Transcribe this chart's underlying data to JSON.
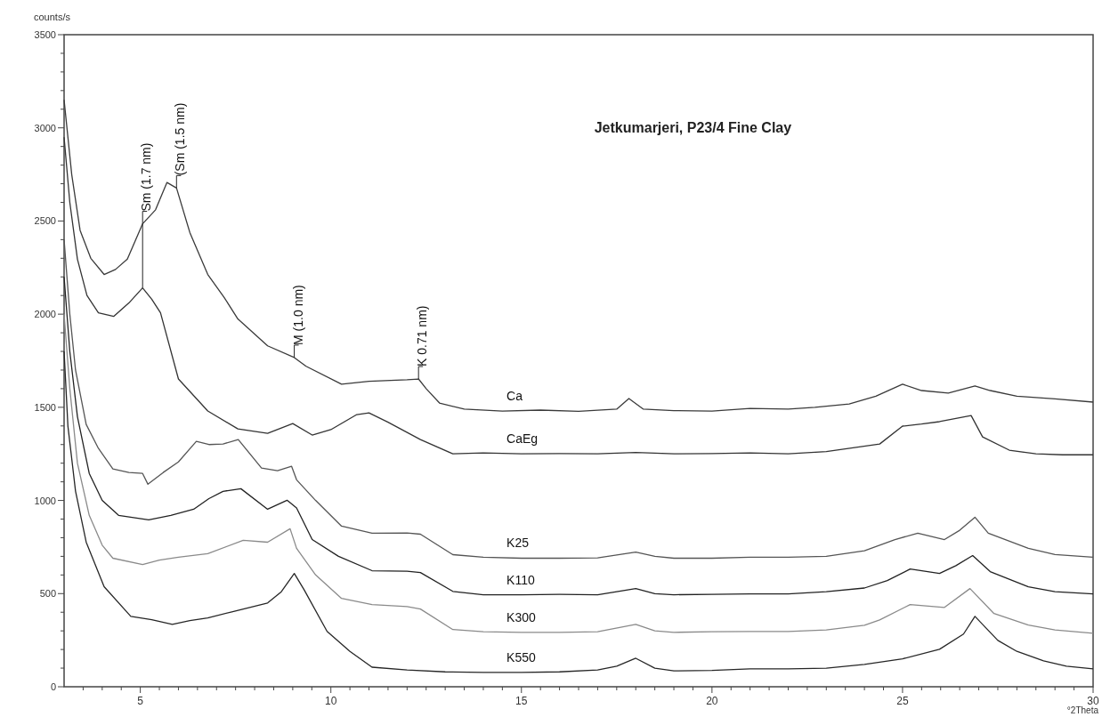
{
  "chart_data": {
    "type": "line",
    "title": "Jetkumarjeri, P23/4 Fine Clay",
    "xlabel": "°2Theta",
    "ylabel": "counts/s",
    "xlim": [
      3,
      30
    ],
    "ylim": [
      0,
      3500
    ],
    "xticks": [
      {
        "value": 3.5,
        "label": null
      },
      {
        "value": 4,
        "label": null
      },
      {
        "value": 4.5,
        "label": null
      },
      5,
      {
        "value": 5.5,
        "label": null
      },
      {
        "value": 6,
        "label": null
      },
      {
        "value": 6.5,
        "label": null
      },
      {
        "value": 7,
        "label": null
      },
      {
        "value": 7.5,
        "label": null
      },
      {
        "value": 8,
        "label": null
      },
      {
        "value": 8.5,
        "label": null
      },
      {
        "value": 9,
        "label": null
      },
      {
        "value": 9.5,
        "label": null
      },
      10,
      {
        "value": 10.5,
        "label": null
      },
      {
        "value": 11,
        "label": null
      },
      {
        "value": 11.5,
        "label": null
      },
      {
        "value": 12,
        "label": null
      },
      {
        "value": 12.5,
        "label": null
      },
      {
        "value": 13,
        "label": null
      },
      {
        "value": 13.5,
        "label": null
      },
      {
        "value": 14,
        "label": null
      },
      {
        "value": 14.5,
        "label": null
      },
      15,
      {
        "value": 15.5,
        "label": null
      },
      {
        "value": 16,
        "label": null
      },
      {
        "value": 16.5,
        "label": null
      },
      {
        "value": 17,
        "label": null
      },
      {
        "value": 17.5,
        "label": null
      },
      {
        "value": 18,
        "label": null
      },
      {
        "value": 18.5,
        "label": null
      },
      {
        "value": 19,
        "label": null
      },
      {
        "value": 19.5,
        "label": null
      },
      20,
      {
        "value": 20.5,
        "label": null
      },
      {
        "value": 21,
        "label": null
      },
      {
        "value": 21.5,
        "label": null
      },
      {
        "value": 22,
        "label": null
      },
      {
        "value": 22.5,
        "label": null
      },
      {
        "value": 23,
        "label": null
      },
      {
        "value": 23.5,
        "label": null
      },
      {
        "value": 24,
        "label": null
      },
      {
        "value": 24.5,
        "label": null
      },
      25,
      {
        "value": 25.5,
        "label": null
      },
      {
        "value": 26,
        "label": null
      },
      {
        "value": 26.5,
        "label": null
      },
      {
        "value": 27,
        "label": null
      },
      {
        "value": 27.5,
        "label": null
      },
      {
        "value": 28,
        "label": null
      },
      {
        "value": 28.5,
        "label": null
      },
      {
        "value": 29,
        "label": null
      },
      {
        "value": 29.5,
        "label": null
      },
      30
    ],
    "yticks": [
      0,
      {
        "value": 100,
        "label": null
      },
      {
        "value": 200,
        "label": null
      },
      {
        "value": 300,
        "label": null
      },
      {
        "value": 400,
        "label": null
      },
      500,
      {
        "value": 600,
        "label": null
      },
      {
        "value": 700,
        "label": null
      },
      {
        "value": 800,
        "label": null
      },
      {
        "value": 900,
        "label": null
      },
      1000,
      {
        "value": 1100,
        "label": null
      },
      {
        "value": 1200,
        "label": null
      },
      {
        "value": 1300,
        "label": null
      },
      {
        "value": 1400,
        "label": null
      },
      1500,
      {
        "value": 1600,
        "label": null
      },
      {
        "value": 1700,
        "label": null
      },
      {
        "value": 1800,
        "label": null
      },
      {
        "value": 1900,
        "label": null
      },
      2000,
      {
        "value": 2100,
        "label": null
      },
      {
        "value": 2200,
        "label": null
      },
      {
        "value": 2300,
        "label": null
      },
      {
        "value": 2400,
        "label": null
      },
      2500,
      {
        "value": 2600,
        "label": null
      },
      {
        "value": 2700,
        "label": null
      },
      {
        "value": 2800,
        "label": null
      },
      {
        "value": 2900,
        "label": null
      },
      3000,
      {
        "value": 3100,
        "label": null
      },
      {
        "value": 3200,
        "label": null
      },
      {
        "value": 3300,
        "label": null
      },
      {
        "value": 3400,
        "label": null
      },
      3500
    ],
    "grid": false,
    "legend": false,
    "marker": "none",
    "line_style": "solid",
    "series": [
      {
        "name": "Ca",
        "color": "#3a3a3a",
        "x": [
          3,
          3.2,
          3.42,
          3.7,
          4.05,
          4.35,
          4.66,
          5.06,
          5.4,
          5.7,
          5.95,
          6.3,
          6.77,
          7.2,
          7.56,
          8.34,
          9.04,
          9.35,
          10.28,
          11,
          12,
          12.3,
          12.5,
          12.85,
          13.5,
          14.5,
          15.5,
          16.5,
          17.5,
          17.82,
          18.2,
          19,
          20,
          21,
          22,
          22.7,
          23.6,
          24.3,
          25,
          25.5,
          26.2,
          26.9,
          27.3,
          28,
          29,
          30
        ],
        "values": [
          3150,
          2750,
          2450,
          2300,
          2213,
          2240,
          2295,
          2485,
          2560,
          2707,
          2677,
          2438,
          2213,
          2090,
          1974,
          1830,
          1767,
          1720,
          1624,
          1640,
          1648,
          1652,
          1600,
          1523,
          1490,
          1480,
          1485,
          1478,
          1490,
          1547,
          1490,
          1482,
          1480,
          1494,
          1490,
          1500,
          1518,
          1560,
          1624,
          1590,
          1576,
          1614,
          1590,
          1560,
          1545,
          1528
        ]
      },
      {
        "name": "CaEg",
        "color": "#333333",
        "x": [
          3,
          3.15,
          3.35,
          3.6,
          3.9,
          4.3,
          4.7,
          5.06,
          5.3,
          5.53,
          6,
          6.77,
          7.56,
          8.34,
          9,
          9.51,
          10,
          10.68,
          11,
          11.5,
          12.35,
          13.2,
          14,
          15,
          16,
          17,
          18,
          19,
          20,
          21,
          22,
          23,
          24.4,
          25,
          25.5,
          25.97,
          26.4,
          26.8,
          27.1,
          27.8,
          28.5,
          29.2,
          30
        ],
        "values": [
          2950,
          2600,
          2295,
          2100,
          2007,
          1988,
          2060,
          2141,
          2080,
          2007,
          1652,
          1480,
          1384,
          1360,
          1413,
          1351,
          1380,
          1461,
          1470,
          1420,
          1327,
          1250,
          1255,
          1250,
          1252,
          1250,
          1258,
          1250,
          1252,
          1255,
          1250,
          1262,
          1303,
          1399,
          1410,
          1423,
          1440,
          1456,
          1341,
          1270,
          1250,
          1245,
          1245
        ]
      },
      {
        "name": "K25",
        "color": "#555555",
        "x": [
          3,
          3.15,
          3.3,
          3.58,
          3.9,
          4.28,
          4.7,
          5.06,
          5.2,
          5.6,
          6,
          6.47,
          6.8,
          7.17,
          7.57,
          8.18,
          8.6,
          8.97,
          9.1,
          9.6,
          10.28,
          11.08,
          12,
          12.35,
          13.2,
          14,
          15,
          16,
          17,
          18,
          18.5,
          19,
          20,
          21,
          22,
          23,
          24,
          24.8,
          25.4,
          26.1,
          26.5,
          26.9,
          27.25,
          28.3,
          29,
          30
        ],
        "values": [
          2400,
          2000,
          1700,
          1408,
          1280,
          1169,
          1150,
          1145,
          1087,
          1150,
          1207,
          1317,
          1300,
          1303,
          1327,
          1174,
          1160,
          1183,
          1111,
          1000,
          862,
          824,
          825,
          819,
          709,
          695,
          690,
          690,
          692,
          723,
          700,
          690,
          690,
          695,
          695,
          700,
          730,
          790,
          824,
          790,
          840,
          910,
          824,
          743,
          710,
          695
        ]
      },
      {
        "name": "K110",
        "color": "#222222",
        "x": [
          3,
          3.15,
          3.35,
          3.66,
          4,
          4.43,
          5.22,
          5.8,
          6.4,
          6.8,
          7.17,
          7.64,
          8.34,
          8.85,
          9.1,
          9.51,
          10.2,
          11.08,
          12,
          12.35,
          13.2,
          14,
          15,
          16,
          17,
          18,
          18.5,
          19,
          20,
          21,
          22,
          23,
          24,
          24.6,
          25.2,
          25.97,
          26.4,
          26.84,
          27.3,
          28.3,
          29,
          30
        ],
        "values": [
          2200,
          1800,
          1450,
          1145,
          1000,
          920,
          896,
          920,
          953,
          1010,
          1049,
          1063,
          953,
          1001,
          960,
          790,
          700,
          623,
          620,
          613,
          512,
          494,
          494,
          496,
          494,
          527,
          500,
          494,
          496,
          498,
          498,
          510,
          530,
          570,
          632,
          608,
          650,
          704,
          618,
          537,
          510,
          498
        ]
      },
      {
        "name": "K300",
        "color": "#8a8a8a",
        "x": [
          3,
          3.15,
          3.35,
          3.66,
          4,
          4.28,
          5.06,
          5.5,
          6,
          6.77,
          7.7,
          8.34,
          8.93,
          9.1,
          9.6,
          10.28,
          11.08,
          12,
          12.35,
          13.2,
          14,
          15,
          16,
          17,
          18,
          18.5,
          19,
          20,
          21,
          22,
          23,
          24,
          24.4,
          25.2,
          26.1,
          26.77,
          27.4,
          28.3,
          29,
          30
        ],
        "values": [
          2000,
          1600,
          1200,
          920,
          760,
          690,
          656,
          680,
          695,
          714,
          786,
          776,
          848,
          743,
          600,
          474,
          441,
          430,
          417,
          307,
          295,
          292,
          292,
          295,
          335,
          300,
          292,
          295,
          297,
          297,
          305,
          330,
          359,
          441,
          426,
          527,
          393,
          331,
          305,
          287
        ]
      },
      {
        "name": "K550",
        "color": "#262626",
        "x": [
          3,
          3.1,
          3.3,
          3.58,
          4.05,
          4.75,
          5.3,
          5.84,
          6.3,
          6.77,
          7.4,
          8.34,
          8.7,
          9.04,
          9.3,
          9.9,
          10.5,
          11.08,
          12,
          13,
          14,
          15,
          16,
          17,
          17.5,
          18,
          18.5,
          19,
          20,
          21,
          22,
          23,
          24,
          25,
          25.97,
          26.6,
          26.9,
          27.5,
          28,
          28.7,
          29.3,
          30
        ],
        "values": [
          1800,
          1400,
          1050,
          776,
          537,
          378,
          360,
          335,
          355,
          369,
          402,
          450,
          510,
          608,
          520,
          297,
          190,
          105,
          90,
          80,
          77,
          77,
          80,
          90,
          110,
          153,
          100,
          85,
          88,
          96,
          96,
          100,
          120,
          150,
          201,
          283,
          378,
          249,
          190,
          139,
          110,
          96
        ]
      }
    ],
    "annotations": [
      {
        "text": "Sm (1.7 nm)",
        "x": 5.06,
        "y": 2141
      },
      {
        "text": "(Sm (1.5 nm)",
        "x": 5.95,
        "y": 2677
      },
      {
        "text": "M (1.0 nm)",
        "x": 9.04,
        "y": 1767
      },
      {
        "text": "K 0.71 nm)",
        "x": 12.3,
        "y": 1652
      }
    ]
  }
}
